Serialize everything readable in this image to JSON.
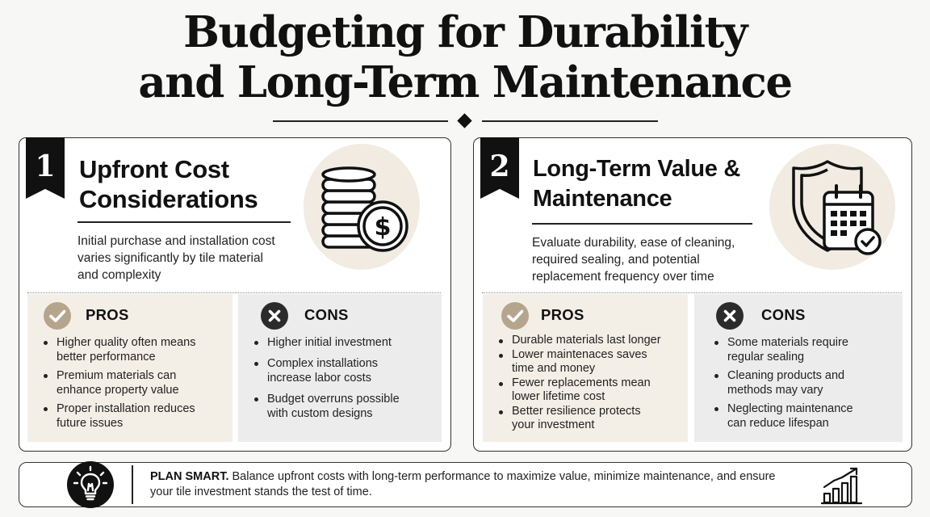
{
  "header": {
    "title_line1": "Budgeting for Durability",
    "title_line2": "and Long-Term Maintenance"
  },
  "panels": [
    {
      "number": "1",
      "title_line1": "Upfront Cost",
      "title_line2": "Considerations",
      "description": [
        "Initial purchase and installation cost",
        "varies significantly by tile material",
        "and complexity"
      ],
      "icon": "coin-stack-dollar-icon",
      "pros": {
        "label": "PROS",
        "items": [
          [
            "Higher quality often means",
            "better performance"
          ],
          [
            "Premium materials can",
            "enhance property value"
          ],
          [
            "Proper installation reduces",
            "future issues"
          ]
        ]
      },
      "cons": {
        "label": "CONS",
        "items": [
          [
            "Higher initial investment"
          ],
          [
            "Complex installations",
            "increase labor costs"
          ],
          [
            "Budget overruns possible",
            "with custom designs"
          ]
        ]
      }
    },
    {
      "number": "2",
      "title_line1": "Long-Term Value &",
      "title_line2": "Maintenance",
      "description": [
        "Evaluate durability, ease of cleaning,",
        "required sealing, and potential",
        "replacement frequency over time"
      ],
      "icon": "shield-calendar-check-icon",
      "pros": {
        "label": "PROS",
        "items": [
          [
            "Durable materials last longer"
          ],
          [
            "Lower maintenaces saves",
            "time and money"
          ],
          [
            "Fewer replacements mean",
            "lower lifetime cost"
          ],
          [
            "Better resilience protects",
            "your investment"
          ]
        ]
      },
      "cons": {
        "label": "CONS",
        "items": [
          [
            "Some materials require",
            "regular sealing"
          ],
          [
            "Cleaning products and",
            "methods may vary"
          ],
          [
            "Neglecting maintenance",
            "can reduce lifespan"
          ]
        ]
      }
    }
  ],
  "footer": {
    "lead": "PLAN SMART.",
    "text": " Balance upfront costs with long-term performance to maximize value, minimize maintenance, and ensure your tile investment stands the test of time.",
    "left_icon": "lightbulb-icon",
    "right_icon": "growth-chart-icon"
  },
  "colors": {
    "pros_bg": "#f4efe6",
    "cons_bg": "#ececec",
    "pros_badge": "#b6a58d",
    "cons_badge": "#2b2b2b",
    "icon_circle": "#f1ebe1"
  }
}
